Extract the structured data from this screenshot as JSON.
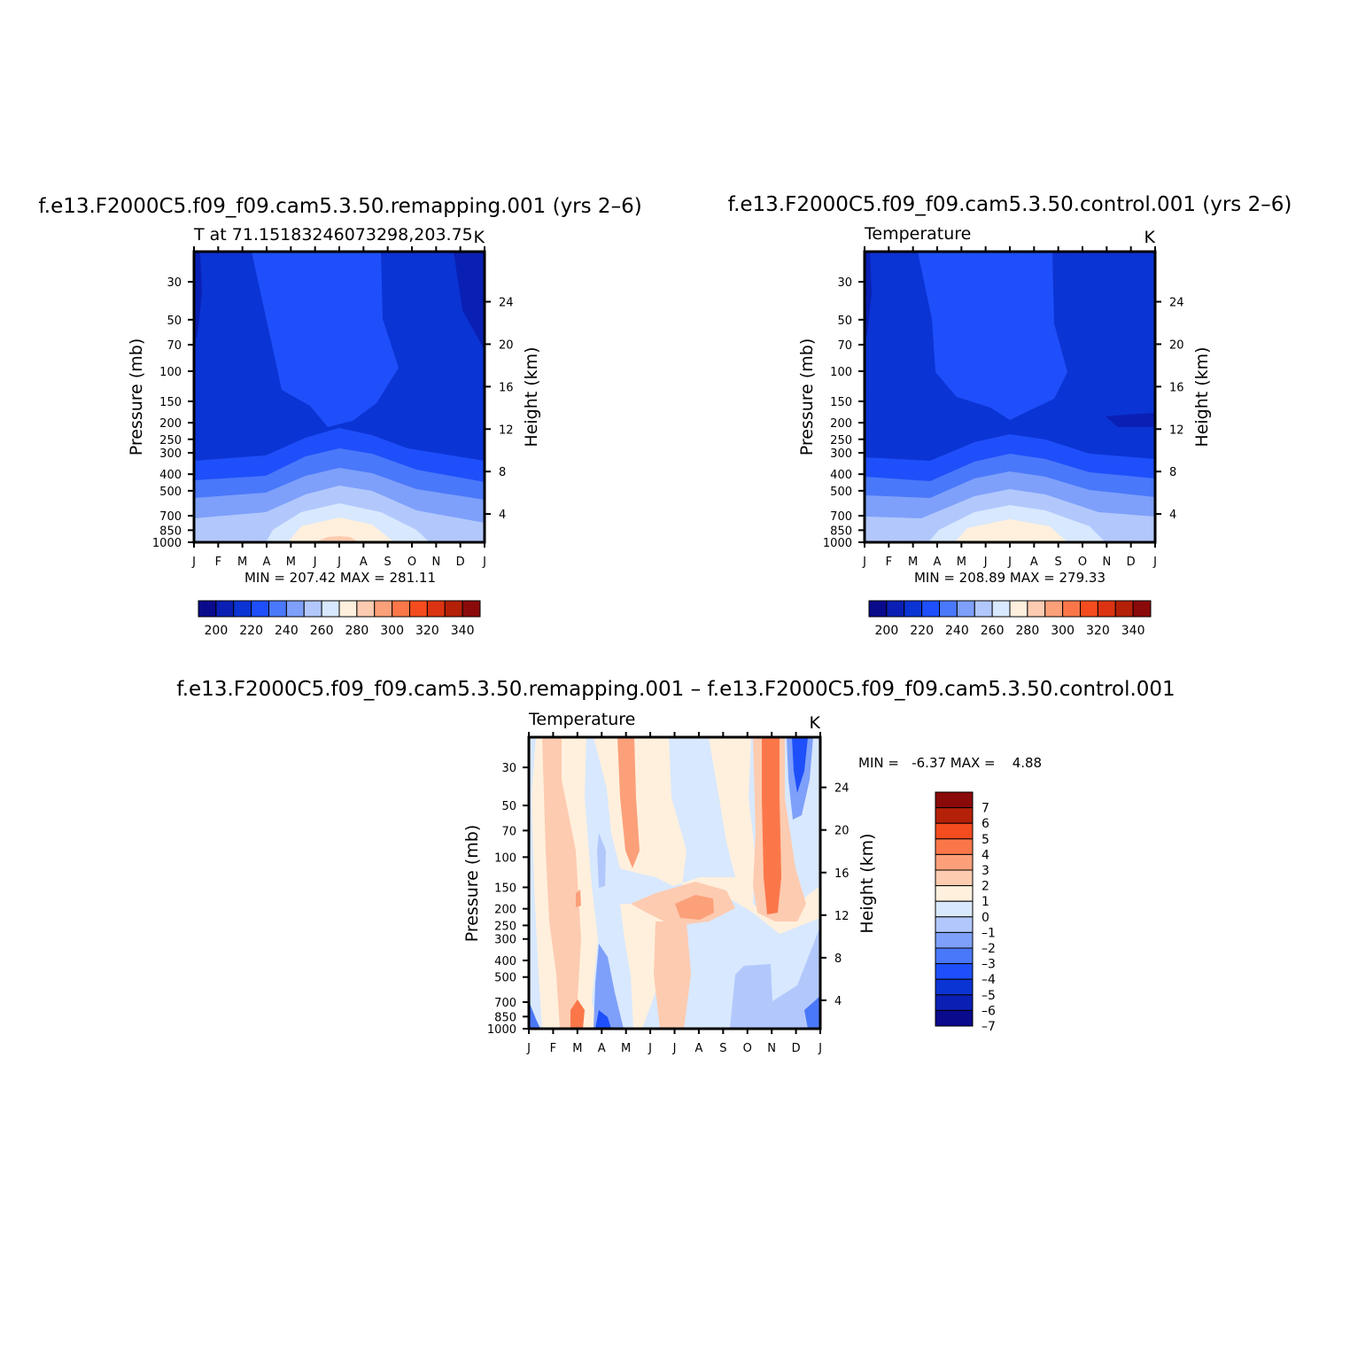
{
  "palette": {
    "abs": [
      "#0a0a8c",
      "#0a20b4",
      "#0b34d4",
      "#1e4ffa",
      "#4a78fa",
      "#7ea0fa",
      "#b2c8fc",
      "#d8e8fe",
      "#fff0dd",
      "#fdcbb0",
      "#fca07a",
      "#fb774a",
      "#f44c1e",
      "#dc3412",
      "#b42008",
      "#8a0a0a"
    ],
    "diff": [
      "#0a0a8c",
      "#0a20b4",
      "#0b34d4",
      "#1e4ffa",
      "#4a78fa",
      "#7ea0fa",
      "#b2c8fc",
      "#d8e8fe",
      "#fff0dd",
      "#fdcbb0",
      "#fca07a",
      "#fb774a",
      "#f44c1e",
      "#b42008",
      "#8a0a0a"
    ]
  },
  "chart_data": [
    {
      "type": "contour",
      "title": "f.e13.F2000C5.f09_f09.cam5.3.50.remapping.001  (yrs 2–6)",
      "left_subtitle": "T at 71.15183246073298,203.75",
      "right_subtitle": "K",
      "ylabel": "Pressure (mb)",
      "ylabel2": "Height (km)",
      "minmax": "MIN = 207.42 MAX = 281.11",
      "min": 207.42,
      "max": 281.11,
      "x_ticks": [
        "J",
        "F",
        "M",
        "A",
        "M",
        "J",
        "J",
        "A",
        "S",
        "O",
        "N",
        "D",
        "J"
      ],
      "y_ticks": [
        "30",
        "50",
        "70",
        "100",
        "150",
        "200",
        "250",
        "300",
        "400",
        "500",
        "700",
        "850",
        "1000"
      ],
      "y2_ticks": [
        "24",
        "20",
        "16",
        "12",
        "8",
        "4"
      ],
      "colorbar": {
        "labels": [
          "200",
          "220",
          "240",
          "260",
          "280",
          "300",
          "320",
          "340"
        ],
        "levels": [
          195,
          200,
          205,
          210,
          215,
          220,
          225,
          230,
          235,
          240,
          245,
          250,
          255,
          260,
          265,
          270,
          275,
          280,
          285,
          290,
          295,
          300,
          305,
          310,
          315,
          320,
          325,
          330,
          335,
          340,
          345
        ]
      }
    },
    {
      "type": "contour",
      "title": "f.e13.F2000C5.f09_f09.cam5.3.50.control.001  (yrs 2–6)",
      "left_subtitle": "Temperature",
      "right_subtitle": "K",
      "ylabel": "Pressure (mb)",
      "ylabel2": "Height (km)",
      "minmax": "MIN = 208.89 MAX = 279.33",
      "min": 208.89,
      "max": 279.33,
      "x_ticks": [
        "J",
        "F",
        "M",
        "A",
        "M",
        "J",
        "J",
        "A",
        "S",
        "O",
        "N",
        "D",
        "J"
      ],
      "y_ticks": [
        "30",
        "50",
        "70",
        "100",
        "150",
        "200",
        "250",
        "300",
        "400",
        "500",
        "700",
        "850",
        "1000"
      ],
      "y2_ticks": [
        "24",
        "20",
        "16",
        "12",
        "8",
        "4"
      ],
      "colorbar": {
        "labels": [
          "200",
          "220",
          "240",
          "260",
          "280",
          "300",
          "320",
          "340"
        ]
      }
    },
    {
      "type": "contour",
      "title": "f.e13.F2000C5.f09_f09.cam5.3.50.remapping.001 – f.e13.F2000C5.f09_f09.cam5.3.50.control.001",
      "left_subtitle": "Temperature",
      "right_subtitle": "K",
      "ylabel": "Pressure (mb)",
      "ylabel2": "Height (km)",
      "minmax": "MIN =   -6.37 MAX =    4.88",
      "min": -6.37,
      "max": 4.88,
      "x_ticks": [
        "J",
        "F",
        "M",
        "A",
        "M",
        "J",
        "J",
        "A",
        "S",
        "O",
        "N",
        "D",
        "J"
      ],
      "y_ticks": [
        "30",
        "50",
        "70",
        "100",
        "150",
        "200",
        "250",
        "300",
        "400",
        "500",
        "700",
        "850",
        "1000"
      ],
      "y2_ticks": [
        "24",
        "20",
        "16",
        "12",
        "8",
        "4"
      ],
      "colorbar": {
        "labels": [
          "7",
          "6",
          "5",
          "4",
          "3",
          "2",
          "1",
          "0",
          "–1",
          "–2",
          "–3",
          "–4",
          "–5",
          "–6",
          "–7"
        ]
      }
    }
  ]
}
